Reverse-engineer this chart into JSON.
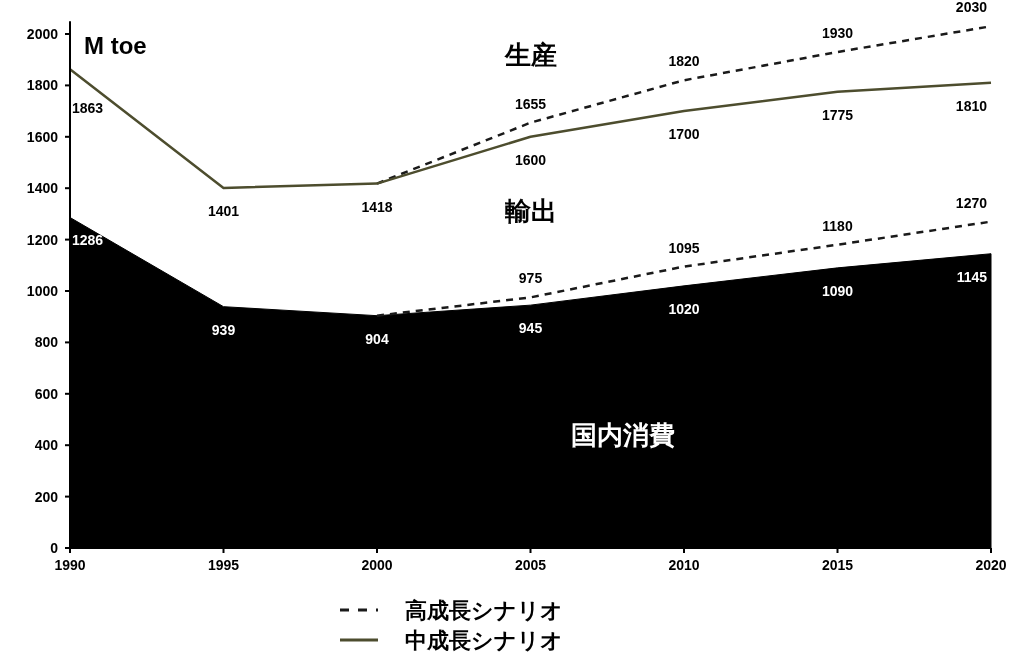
{
  "chart_data": {
    "type": "line",
    "ylabel": "M toe",
    "x": [
      1990,
      1995,
      2000,
      2005,
      2010,
      2015,
      2020
    ],
    "xlim": [
      1990,
      2020
    ],
    "xticks": [
      1990,
      1995,
      2000,
      2005,
      2010,
      2015,
      2020
    ],
    "ylim": [
      0,
      2050
    ],
    "yticks": [
      0,
      200,
      400,
      600,
      800,
      1000,
      1200,
      1400,
      1600,
      1800,
      2000
    ],
    "grid": false,
    "legend": "bottom",
    "marker": "none",
    "series": [
      {
        "type": "area",
        "color": "#000000",
        "line_style": "solid",
        "values": [
          1286,
          939,
          904,
          945,
          1020,
          1090,
          1145
        ],
        "value_labels": [
          "1286",
          "939",
          "904",
          "945",
          "1020",
          "1090",
          "1145"
        ]
      },
      {
        "name": "高成長シナリオ",
        "color": "#1a1a1a",
        "line_style": "dashed",
        "values": [
          null,
          null,
          1418,
          1655,
          1820,
          1930,
          2030
        ],
        "value_labels": [
          null,
          null,
          null,
          "1655",
          "1820",
          "1930",
          "2030"
        ]
      },
      {
        "name": "中成長シナリオ",
        "color": "#4d4d2e",
        "line_style": "solid",
        "values": [
          1863,
          1401,
          1418,
          1600,
          1700,
          1775,
          1810
        ],
        "value_labels": [
          "1863",
          "1401",
          "1418",
          "1600",
          "1700",
          "1775",
          "1810"
        ]
      },
      {
        "color": "#1a1a1a",
        "line_style": "dashed",
        "values": [
          null,
          null,
          904,
          975,
          1095,
          1180,
          1270
        ],
        "value_labels": [
          null,
          null,
          null,
          "975",
          "1095",
          "1180",
          "1270"
        ]
      }
    ],
    "annotations": [
      "生産",
      "輸出",
      "国内消費"
    ]
  }
}
